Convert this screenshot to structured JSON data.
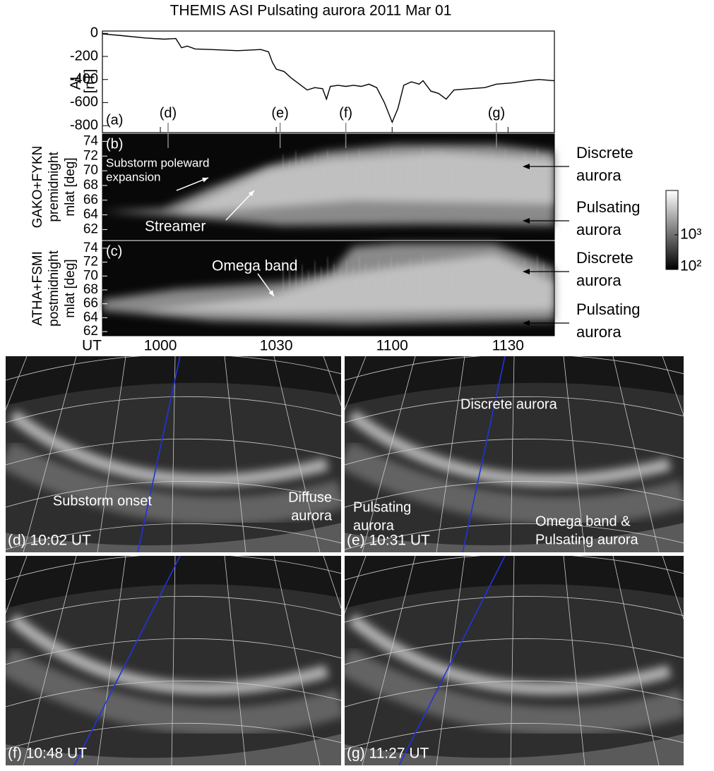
{
  "title": "THEMIS ASI Pulsating aurora 2011 Mar 01",
  "chart_data": {
    "type": "line",
    "ylabel": [
      "AL",
      "[nT]"
    ],
    "xlabel": "UT",
    "panel_label": "(a)",
    "color": "#000000",
    "x": [
      585,
      590,
      596,
      601,
      604,
      605.5,
      607,
      609,
      613,
      620,
      626,
      628,
      629,
      630,
      632,
      634,
      636,
      638,
      640,
      642,
      643,
      644,
      646,
      648,
      650,
      652,
      654,
      656,
      658,
      660,
      661.5,
      663,
      665,
      667,
      668,
      670,
      672,
      674,
      676,
      680,
      684,
      687,
      691,
      695,
      698,
      702
    ],
    "values": [
      -5,
      -20,
      -40,
      -50,
      -45,
      -125,
      -110,
      -135,
      -140,
      -150,
      -140,
      -160,
      -250,
      -310,
      -330,
      -390,
      -440,
      -490,
      -470,
      -480,
      -570,
      -460,
      -450,
      -460,
      -450,
      -460,
      -440,
      -470,
      -600,
      -770,
      -650,
      -450,
      -420,
      -440,
      -410,
      -500,
      -520,
      -570,
      -490,
      -480,
      -470,
      -440,
      -430,
      -410,
      -400,
      -410
    ],
    "xlim": [
      585,
      702
    ],
    "ylim": [
      -860,
      20
    ],
    "yticks": [
      0,
      -200,
      -400,
      -600,
      -800
    ],
    "xticks": [
      {
        "value": 600,
        "label": "1000"
      },
      {
        "value": 630,
        "label": "1030"
      },
      {
        "value": 660,
        "label": "1100"
      },
      {
        "value": 690,
        "label": "1130"
      }
    ],
    "markers": [
      {
        "label": "(d)",
        "x": 602
      },
      {
        "label": "(e)",
        "x": 631
      },
      {
        "label": "(f)",
        "x": 648
      },
      {
        "label": "(g)",
        "x": 687
      }
    ]
  },
  "keograms": [
    {
      "label": "(b)",
      "ylabel": [
        "GAKO+FYKN",
        "premidnight",
        "mlat [deg]"
      ],
      "ylim": [
        60.6,
        75
      ],
      "yticks": [
        62,
        64,
        66,
        68,
        70,
        72,
        74
      ],
      "annotations": [
        [
          "Substorm poleward",
          "expansion"
        ],
        [
          "Streamer"
        ]
      ],
      "right_labels": [
        [
          "Discrete",
          "aurora"
        ],
        [
          "Pulsating",
          "aurora"
        ]
      ]
    },
    {
      "label": "(c)",
      "ylabel": [
        "ATHA+FSMI",
        "postmidnight",
        "mlat [deg]"
      ],
      "ylim": [
        61.4,
        75
      ],
      "yticks": [
        62,
        64,
        66,
        68,
        70,
        72,
        74
      ],
      "annotations": [
        [
          "Omega band"
        ]
      ],
      "right_labels": [
        [
          "Discrete",
          "aurora"
        ],
        [
          "Pulsating",
          "aurora"
        ]
      ]
    }
  ],
  "colorbar": {
    "log": true,
    "clim": [
      81,
      25000
    ],
    "ticks": [
      {
        "value": 1000,
        "label": "10³"
      },
      {
        "value": 100,
        "label": "10²"
      }
    ]
  },
  "images": [
    {
      "label": "(d) 10:02 UT",
      "annotations": [
        [
          "Substorm onset"
        ],
        [
          "Diffuse",
          "aurora"
        ]
      ]
    },
    {
      "label": "(e) 10:31 UT",
      "annotations": [
        [
          "Discrete aurora"
        ],
        [
          "Pulsating",
          "aurora"
        ],
        [
          "Omega band &",
          "Pulsating aurora"
        ]
      ]
    },
    {
      "label": "(f) 10:48 UT",
      "annotations": []
    },
    {
      "label": "(g) 11:27 UT",
      "annotations": []
    }
  ]
}
